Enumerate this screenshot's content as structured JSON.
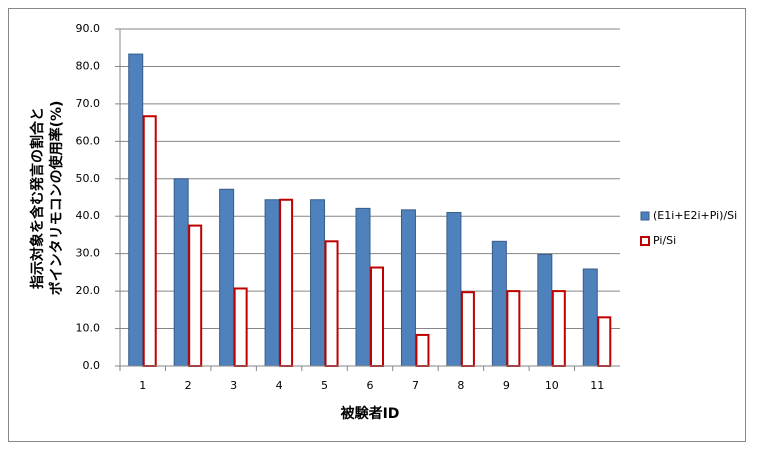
{
  "chart_data": {
    "type": "bar",
    "y_label_lines": [
      "指示対象を含む発言の割合と",
      "ポインタリモコンの使用率(%)"
    ],
    "x_label": "被験者ID",
    "categories": [
      "1",
      "2",
      "3",
      "4",
      "5",
      "6",
      "7",
      "8",
      "9",
      "10",
      "11"
    ],
    "series": [
      {
        "name": "(E1i+E2i+Pi)/Si",
        "color": "#4f81bd",
        "values": [
          83.3,
          50.0,
          47.2,
          44.4,
          44.4,
          42.1,
          41.7,
          41.0,
          33.3,
          29.8,
          25.9
        ]
      },
      {
        "name": "Pi/Si",
        "color": "#c00000",
        "values": [
          66.7,
          37.5,
          20.7,
          44.4,
          33.3,
          26.3,
          8.3,
          19.7,
          20.0,
          20.0,
          13.0
        ]
      }
    ],
    "ylim": [
      0,
      90
    ],
    "yticks": [
      {
        "value": 0,
        "label": "0.0"
      },
      {
        "value": 10,
        "label": "10.0"
      },
      {
        "value": 20,
        "label": "20.0"
      },
      {
        "value": 30,
        "label": "30.0"
      },
      {
        "value": 40,
        "label": "40.0"
      },
      {
        "value": 50,
        "label": "50.0"
      },
      {
        "value": 60,
        "label": "60.0"
      },
      {
        "value": 70,
        "label": "70.0"
      },
      {
        "value": 80,
        "label": "80.0"
      },
      {
        "value": 90,
        "label": "90.0"
      }
    ],
    "grid": true,
    "legend": "right"
  }
}
